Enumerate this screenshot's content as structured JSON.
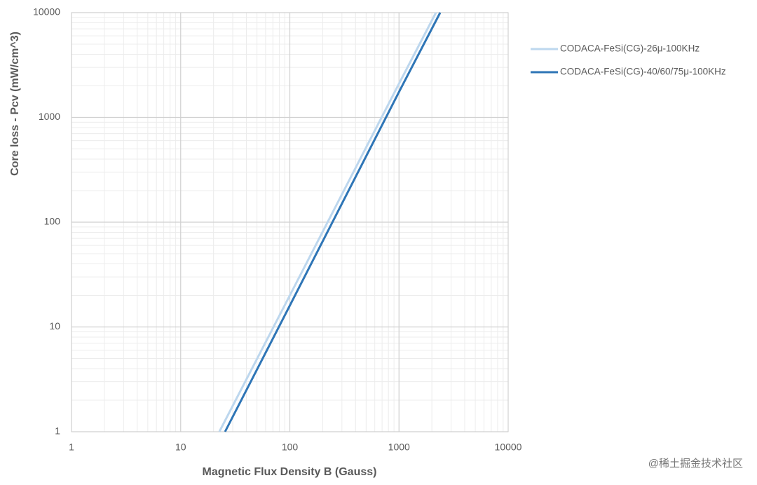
{
  "chart_data": {
    "type": "line",
    "xlabel": "Magnetic Flux Density B (Gauss)",
    "ylabel": "Core loss  - Pcv  (mW/cm^3)",
    "xscale": "log",
    "yscale": "log",
    "xlim": [
      1,
      10000
    ],
    "ylim": [
      1,
      10000
    ],
    "xticks": [
      1,
      10,
      100,
      1000,
      10000
    ],
    "yticks": [
      1,
      10,
      100,
      1000,
      10000
    ],
    "grid": true,
    "minor_grid": true,
    "legend": "right",
    "series": [
      {
        "name": "CODACA-FeSi(CG)-26μ-100KHz",
        "color": "#bdd7ee",
        "x": [
          22.6,
          100,
          1000,
          2180
        ],
        "values": [
          1,
          20,
          2100,
          10000
        ]
      },
      {
        "name": "CODACA-FeSi(CG)-40/60/75μ-100KHz",
        "color": "#2e75b6",
        "x": [
          25.5,
          100,
          1000,
          2384
        ],
        "values": [
          1,
          16,
          1750,
          10000
        ]
      }
    ]
  },
  "watermark": "@稀土掘金技术社区"
}
